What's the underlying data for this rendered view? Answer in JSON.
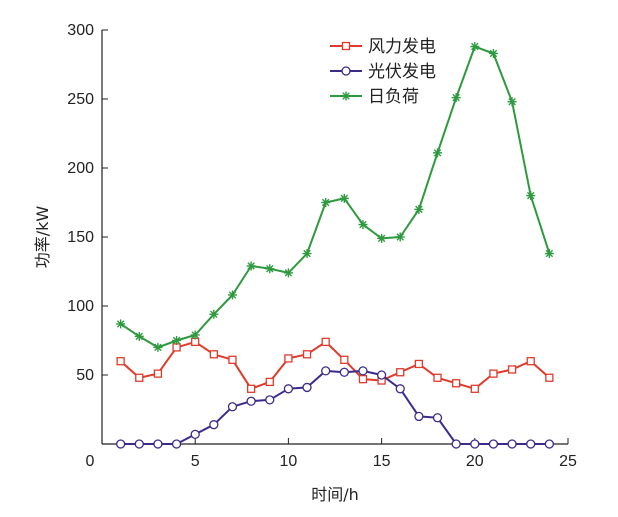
{
  "chart_data": {
    "type": "line",
    "xlabel": "时间/h",
    "ylabel": "功率/kW",
    "xlim": [
      0,
      25
    ],
    "ylim": [
      0,
      300
    ],
    "xticks": [
      0,
      5,
      10,
      15,
      20,
      25
    ],
    "yticks": [
      50,
      100,
      150,
      200,
      250,
      300
    ],
    "grid": false,
    "legend_position": "top-right",
    "x": [
      1,
      2,
      3,
      4,
      5,
      6,
      7,
      8,
      9,
      10,
      11,
      12,
      13,
      14,
      15,
      16,
      17,
      18,
      19,
      20,
      21,
      22,
      23,
      24
    ],
    "series": [
      {
        "name": "风力发电",
        "color": "#e03a2b",
        "marker": "square",
        "values": [
          60,
          48,
          51,
          70,
          74,
          65,
          61,
          40,
          45,
          62,
          65,
          74,
          61,
          47,
          46,
          52,
          58,
          48,
          44,
          40,
          51,
          54,
          60,
          48
        ]
      },
      {
        "name": "光伏发电",
        "color": "#3d2a8a",
        "marker": "circle",
        "values": [
          0,
          0,
          0,
          0,
          7,
          14,
          27,
          31,
          32,
          40,
          41,
          53,
          52,
          53,
          50,
          40,
          20,
          19,
          0,
          0,
          0,
          0,
          0,
          0
        ]
      },
      {
        "name": "日负荷",
        "color": "#2e9a3f",
        "marker": "asterisk",
        "values": [
          87,
          78,
          70,
          75,
          79,
          94,
          108,
          129,
          127,
          124,
          138,
          175,
          178,
          159,
          149,
          150,
          170,
          211,
          251,
          288,
          283,
          248,
          180,
          138
        ]
      }
    ]
  }
}
